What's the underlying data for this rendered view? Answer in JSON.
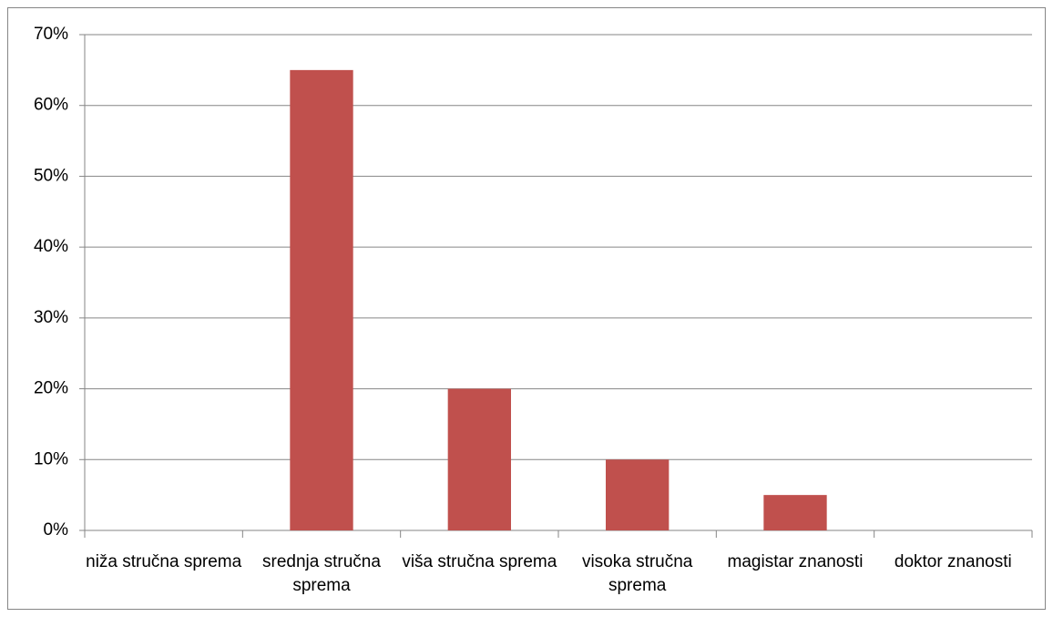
{
  "chart_data": {
    "type": "bar",
    "categories": [
      "niža stručna sprema",
      "srednja stručna sprema",
      "viša stručna sprema",
      "visoka stručna sprema",
      "magistar znanosti",
      "doktor znanosti"
    ],
    "values": [
      0,
      65,
      20,
      10,
      5,
      0
    ],
    "color": "#c0504d",
    "ylim": [
      0,
      70
    ],
    "yticks": [
      {
        "value": 0,
        "label": "0%"
      },
      {
        "value": 10,
        "label": "10%"
      },
      {
        "value": 20,
        "label": "20%"
      },
      {
        "value": 30,
        "label": "30%"
      },
      {
        "value": 40,
        "label": "40%"
      },
      {
        "value": 50,
        "label": "50%"
      },
      {
        "value": 60,
        "label": "60%"
      },
      {
        "value": 70,
        "label": "70%"
      }
    ],
    "grid": true
  }
}
